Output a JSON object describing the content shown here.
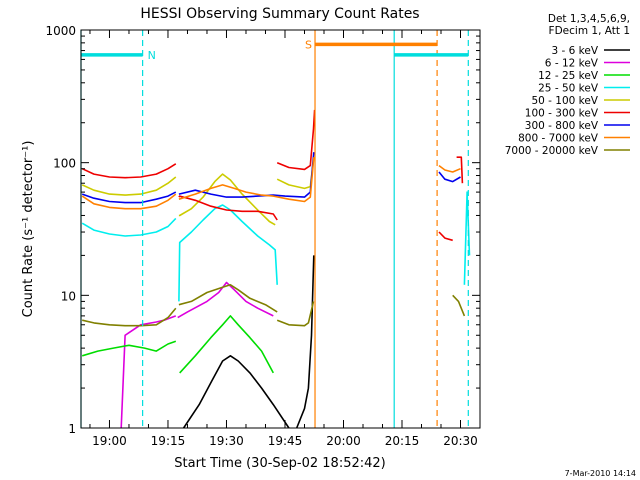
{
  "chart_data": {
    "type": "line",
    "title": "HESSI Observing Summary Count Rates",
    "xlabel": "Start Time (30-Sep-02 18:52:42)",
    "ylabel": "Count Rate (s⁻¹ detector⁻¹)",
    "y_scale": "log",
    "ylim": [
      1,
      1000
    ],
    "x_unit": "minutes of day",
    "xlim": [
      1132.7,
      1235
    ],
    "x_ticks": [
      {
        "value": 1140,
        "label": "19:00"
      },
      {
        "value": 1155,
        "label": "19:15"
      },
      {
        "value": 1170,
        "label": "19:30"
      },
      {
        "value": 1185,
        "label": "19:45"
      },
      {
        "value": 1200,
        "label": "20:00"
      },
      {
        "value": 1215,
        "label": "20:15"
      },
      {
        "value": 1230,
        "label": "20:30"
      }
    ],
    "y_ticks": [
      {
        "value": 1,
        "label": "1"
      },
      {
        "value": 10,
        "label": "10"
      },
      {
        "value": 100,
        "label": "100"
      },
      {
        "value": 1000,
        "label": "1000"
      }
    ],
    "legend": {
      "placement": "right",
      "header": [
        "Det 1,3,4,5,6,9,",
        "FDecim 1, Att 1"
      ],
      "entries": [
        {
          "label": "3 - 6 keV",
          "color": "#000000"
        },
        {
          "label": "6 - 12 keV",
          "color": "#dd00dd"
        },
        {
          "label": "12 - 25 keV",
          "color": "#00dd00"
        },
        {
          "label": "25 - 50 keV",
          "color": "#00eeee"
        },
        {
          "label": "50 - 100 keV",
          "color": "#cccc00"
        },
        {
          "label": "100 - 300 keV",
          "color": "#ee0000"
        },
        {
          "label": "300 - 800 keV",
          "color": "#0000ee"
        },
        {
          "label": "800 - 7000 keV",
          "color": "#ff8000"
        },
        {
          "label": "7000 - 20000 keV",
          "color": "#808000"
        }
      ]
    },
    "flags": [
      {
        "label": "N",
        "color": "#00dddd",
        "x_start": 1132.7,
        "x_end": 1148.5,
        "y": 650
      },
      {
        "label": "S",
        "color": "#ff8000",
        "x_start": 1192.7,
        "x_end": 1224,
        "y": 780
      },
      {
        "label": "",
        "color": "#00dddd",
        "x_start": 1213,
        "x_end": 1232,
        "y": 650
      }
    ],
    "vertical_markers": [
      {
        "x": 1132.7,
        "color": "#00dddd",
        "style": "solid"
      },
      {
        "x": 1148.5,
        "color": "#00dddd",
        "style": "dashed"
      },
      {
        "x": 1192.7,
        "color": "#ff8000",
        "style": "solid"
      },
      {
        "x": 1213,
        "color": "#00dddd",
        "style": "solid"
      },
      {
        "x": 1224,
        "color": "#ff8000",
        "style": "dashed"
      },
      {
        "x": 1232,
        "color": "#00dddd",
        "style": "dashed"
      }
    ],
    "series": [
      {
        "name": "3 - 6 keV",
        "color": "#000000",
        "segments": [
          [
            [
              1159,
              1.0
            ],
            [
              1163,
              1.5
            ],
            [
              1166,
              2.2
            ],
            [
              1169,
              3.2
            ],
            [
              1171,
              3.5
            ],
            [
              1173,
              3.2
            ],
            [
              1176,
              2.6
            ],
            [
              1179,
              2.0
            ],
            [
              1182,
              1.5
            ],
            [
              1186,
              1.0
            ]
          ],
          [
            [
              1188,
              1.0
            ],
            [
              1190,
              1.4
            ],
            [
              1191,
              2.0
            ],
            [
              1191.8,
              5.0
            ],
            [
              1192.4,
              20
            ]
          ]
        ]
      },
      {
        "name": "6 - 12 keV",
        "color": "#dd00dd",
        "segments": [
          [
            [
              1143,
              1.0
            ],
            [
              1144,
              5.0
            ],
            [
              1148,
              6.0
            ],
            [
              1152,
              6.3
            ],
            [
              1154,
              6.5
            ],
            [
              1157,
              7.0
            ]
          ],
          [
            [
              1157.5,
              6.8
            ],
            [
              1160,
              7.5
            ],
            [
              1165,
              9.0
            ],
            [
              1168,
              10.5
            ],
            [
              1170,
              12.5
            ],
            [
              1172,
              11.0
            ],
            [
              1175,
              9.0
            ],
            [
              1178,
              8.0
            ],
            [
              1182,
              7.0
            ]
          ]
        ]
      },
      {
        "name": "12 - 25 keV",
        "color": "#00dd00",
        "segments": [
          [
            [
              1133,
              3.5
            ],
            [
              1137,
              3.8
            ],
            [
              1141,
              4.0
            ],
            [
              1145,
              4.2
            ],
            [
              1149,
              4.0
            ],
            [
              1152,
              3.8
            ],
            [
              1155,
              4.3
            ],
            [
              1157,
              4.5
            ]
          ],
          [
            [
              1158,
              2.6
            ],
            [
              1162,
              3.5
            ],
            [
              1166,
              4.8
            ],
            [
              1169,
              6.0
            ],
            [
              1171,
              7.0
            ],
            [
              1173,
              6.0
            ],
            [
              1176,
              4.8
            ],
            [
              1179,
              3.8
            ],
            [
              1182,
              2.6
            ]
          ]
        ]
      },
      {
        "name": "25 - 50 keV",
        "color": "#00eeee",
        "segments": [
          [
            [
              1133,
              35
            ],
            [
              1136,
              31
            ],
            [
              1140,
              29
            ],
            [
              1144,
              28
            ],
            [
              1148,
              28.5
            ],
            [
              1152,
              30
            ],
            [
              1155,
              33
            ],
            [
              1157,
              38
            ]
          ],
          [
            [
              1157.8,
              9
            ],
            [
              1158,
              25
            ],
            [
              1161,
              30
            ],
            [
              1164,
              37
            ],
            [
              1167,
              45
            ],
            [
              1169,
              48
            ],
            [
              1171,
              44
            ],
            [
              1174,
              36
            ],
            [
              1178,
              28
            ],
            [
              1181,
              24
            ],
            [
              1182.5,
              22
            ],
            [
              1183,
              12
            ]
          ],
          [
            [
              1231,
              12
            ],
            [
              1231.7,
              60
            ],
            [
              1232.3,
              20
            ]
          ]
        ]
      },
      {
        "name": "50 - 100 keV",
        "color": "#cccc00",
        "segments": [
          [
            [
              1133,
              68
            ],
            [
              1136,
              62
            ],
            [
              1140,
              58
            ],
            [
              1144,
              57
            ],
            [
              1148,
              58
            ],
            [
              1152,
              62
            ],
            [
              1155,
              70
            ],
            [
              1157,
              78
            ]
          ],
          [
            [
              1157.8,
              40
            ],
            [
              1158,
              40
            ],
            [
              1161,
              45
            ],
            [
              1164,
              55
            ],
            [
              1167,
              72
            ],
            [
              1169,
              82
            ],
            [
              1171,
              74
            ],
            [
              1174,
              58
            ],
            [
              1178,
              44
            ],
            [
              1181,
              36
            ],
            [
              1182.5,
              34
            ]
          ],
          [
            [
              1183,
              75
            ],
            [
              1186,
              68
            ],
            [
              1190,
              64
            ],
            [
              1191.5,
              66
            ],
            [
              1192.4,
              110
            ]
          ]
        ]
      },
      {
        "name": "100 - 300 keV",
        "color": "#ee0000",
        "segments": [
          [
            [
              1133,
              90
            ],
            [
              1136,
              82
            ],
            [
              1140,
              78
            ],
            [
              1144,
              77
            ],
            [
              1148,
              78
            ],
            [
              1152,
              82
            ],
            [
              1155,
              90
            ],
            [
              1157,
              98
            ]
          ],
          [
            [
              1157.8,
              55
            ],
            [
              1158,
              56
            ],
            [
              1162,
              52
            ],
            [
              1166,
              47
            ],
            [
              1170,
              44
            ],
            [
              1174,
              43
            ],
            [
              1178,
              43
            ],
            [
              1182,
              41
            ],
            [
              1183,
              37
            ]
          ],
          [
            [
              1183,
              100
            ],
            [
              1186,
              92
            ],
            [
              1190,
              89
            ],
            [
              1191.5,
              95
            ],
            [
              1192.3,
              180
            ],
            [
              1192.6,
              250
            ]
          ],
          [
            [
              1224.5,
              30
            ],
            [
              1226,
              27
            ],
            [
              1228,
              26
            ]
          ],
          [
            [
              1229,
              110
            ],
            [
              1230.2,
              110
            ],
            [
              1230.5,
              70
            ]
          ]
        ]
      },
      {
        "name": "300 - 800 keV",
        "color": "#0000ee",
        "segments": [
          [
            [
              1133,
              58
            ],
            [
              1136,
              54
            ],
            [
              1140,
              51
            ],
            [
              1144,
              50
            ],
            [
              1148,
              50
            ],
            [
              1152,
              53
            ],
            [
              1155,
              56
            ],
            [
              1157,
              60
            ]
          ],
          [
            [
              1157.8,
              58
            ],
            [
              1162,
              62
            ],
            [
              1166,
              58
            ],
            [
              1170,
              55
            ],
            [
              1174,
              55
            ],
            [
              1178,
              56
            ],
            [
              1182,
              57
            ],
            [
              1185,
              56
            ],
            [
              1190,
              55
            ],
            [
              1191.5,
              60
            ],
            [
              1192.4,
              120
            ]
          ],
          [
            [
              1224.5,
              85
            ],
            [
              1226,
              75
            ],
            [
              1228,
              72
            ],
            [
              1230,
              78
            ]
          ]
        ]
      },
      {
        "name": "800 - 7000 keV",
        "color": "#ff8000",
        "segments": [
          [
            [
              1133,
              56
            ],
            [
              1136,
              49
            ],
            [
              1140,
              46
            ],
            [
              1144,
              45
            ],
            [
              1148,
              45
            ],
            [
              1152,
              47
            ],
            [
              1155,
              52
            ],
            [
              1157,
              58
            ]
          ],
          [
            [
              1157.8,
              53
            ],
            [
              1162,
              58
            ],
            [
              1166,
              64
            ],
            [
              1169,
              68
            ],
            [
              1172,
              64
            ],
            [
              1175,
              60
            ],
            [
              1179,
              57
            ],
            [
              1182,
              56
            ],
            [
              1186,
              53
            ],
            [
              1190,
              51
            ],
            [
              1191.5,
              55
            ],
            [
              1192.4,
              110
            ]
          ],
          [
            [
              1224.5,
              95
            ],
            [
              1226,
              88
            ],
            [
              1228,
              85
            ],
            [
              1230,
              90
            ]
          ]
        ]
      },
      {
        "name": "7000 - 20000 keV",
        "color": "#808000",
        "segments": [
          [
            [
              1133,
              6.5
            ],
            [
              1136,
              6.2
            ],
            [
              1140,
              6.0
            ],
            [
              1144,
              5.9
            ],
            [
              1148,
              5.9
            ],
            [
              1152,
              6.0
            ],
            [
              1155,
              6.8
            ],
            [
              1157,
              8.0
            ]
          ],
          [
            [
              1157.8,
              8.5
            ],
            [
              1161,
              9.0
            ],
            [
              1165,
              10.5
            ],
            [
              1169,
              11.5
            ],
            [
              1171,
              12.0
            ],
            [
              1173,
              11.0
            ],
            [
              1176,
              9.5
            ],
            [
              1180,
              8.5
            ],
            [
              1183,
              7.5
            ]
          ],
          [
            [
              1183,
              6.5
            ],
            [
              1186,
              6.0
            ],
            [
              1190,
              5.9
            ],
            [
              1191,
              6.2
            ],
            [
              1192.3,
              9.0
            ]
          ],
          [
            [
              1228,
              10
            ],
            [
              1229.5,
              9
            ],
            [
              1231,
              7
            ]
          ]
        ]
      }
    ]
  },
  "footer": {
    "date_stamp": "7-Mar-2010 14:14"
  }
}
